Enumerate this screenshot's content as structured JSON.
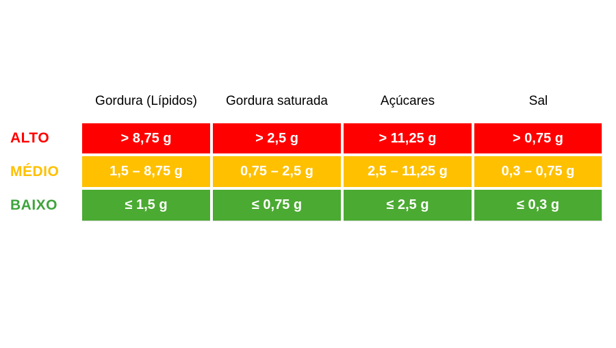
{
  "colors": {
    "high_fill": "#ff0000",
    "medium_fill": "#ffc000",
    "low_fill": "#4baa32",
    "high_label_text": "#ff0000",
    "medium_label_text": "#ffc000",
    "low_label_text": "#3fa43c",
    "header_text": "#000000",
    "cell_text": "#ffffff",
    "background": "#ffffff"
  },
  "chart_data": {
    "type": "table",
    "columns": [
      "Gordura (Lípidos)",
      "Gordura saturada",
      "Açúcares",
      "Sal"
    ],
    "rows": [
      {
        "label": "ALTO",
        "level": "high",
        "values": [
          "> 8,75 g",
          "> 2,5 g",
          "> 11,25 g",
          "> 0,75 g"
        ]
      },
      {
        "label": "MÉDIO",
        "level": "medium",
        "values": [
          "1,5 – 8,75 g",
          "0,75 – 2,5 g",
          "2,5 – 11,25 g",
          "0,3 – 0,75 g"
        ]
      },
      {
        "label": "BAIXO",
        "level": "low",
        "values": [
          "≤ 1,5 g",
          "≤ 0,75 g",
          "≤ 2,5 g",
          "≤ 0,3 g"
        ]
      }
    ],
    "layout_hints": {
      "style": "traffic-light threshold table",
      "unit": "g"
    }
  }
}
